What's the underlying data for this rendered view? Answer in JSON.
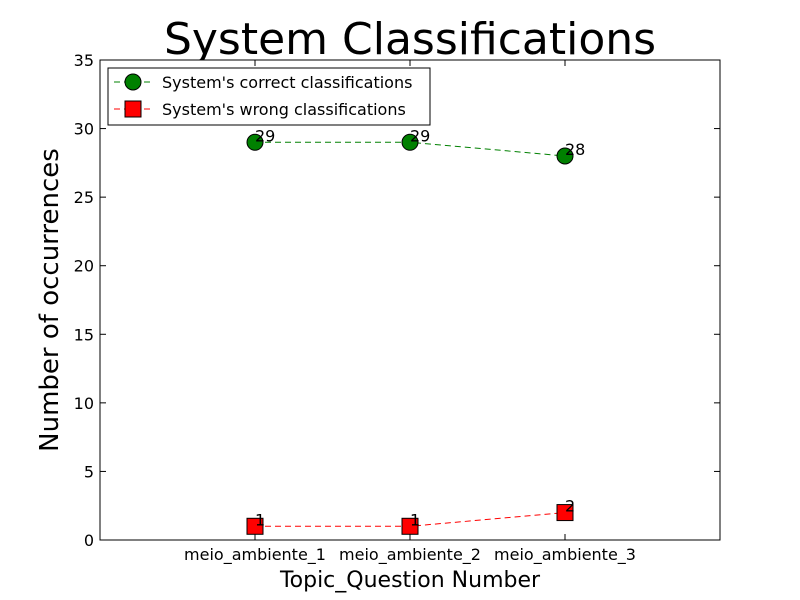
{
  "chart_data": {
    "type": "line",
    "title": "System Classifications",
    "xlabel": "Topic_Question Number",
    "ylabel": "Number of occurrences",
    "categories": [
      "meio_ambiente_1",
      "meio_ambiente_2",
      "meio_ambiente_3"
    ],
    "ylim": [
      0,
      35
    ],
    "yticks": [
      "0",
      "5",
      "10",
      "15",
      "20",
      "25",
      "30",
      "35"
    ],
    "grid": false,
    "legend_position": "top-left",
    "series": [
      {
        "name": "System's correct classifications",
        "values": [
          29,
          29,
          28
        ],
        "labels": [
          "29",
          "29",
          "28"
        ],
        "color": "#008000",
        "marker": "circle",
        "line_style": "dashed"
      },
      {
        "name": "System's wrong classifications",
        "values": [
          1,
          1,
          2
        ],
        "labels": [
          "1",
          "1",
          "2"
        ],
        "color": "#ff0000",
        "marker": "square",
        "line_style": "dashed"
      }
    ]
  }
}
